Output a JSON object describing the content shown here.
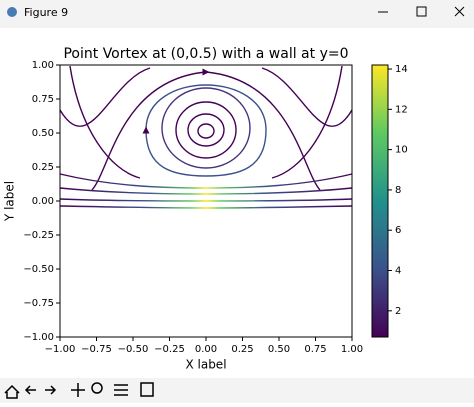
{
  "window": {
    "title": "Figure 9"
  },
  "chart_data": {
    "type": "streamplot",
    "title": "Point Vortex at (0,0.5) with a wall at y=0",
    "x_label": "X label",
    "y_label": "Y label",
    "xlim": [
      -1,
      1
    ],
    "ylim": [
      -1,
      1
    ],
    "xticks": [
      {
        "value": -1,
        "label": "−1.00"
      },
      {
        "value": -0.75,
        "label": "−0.75"
      },
      {
        "value": -0.5,
        "label": "−0.50"
      },
      {
        "value": -0.25,
        "label": "−0.25"
      },
      {
        "value": 0,
        "label": "0.00"
      },
      {
        "value": 0.25,
        "label": "0.25"
      },
      {
        "value": 0.5,
        "label": "0.50"
      },
      {
        "value": 0.75,
        "label": "0.75"
      },
      {
        "value": 1,
        "label": "1.00"
      }
    ],
    "yticks": [
      {
        "value": -1,
        "label": "−1.00"
      },
      {
        "value": -0.75,
        "label": "−0.75"
      },
      {
        "value": -0.5,
        "label": "−0.50"
      },
      {
        "value": -0.25,
        "label": "−0.25"
      },
      {
        "value": 0,
        "label": "0.00"
      },
      {
        "value": 0.25,
        "label": "0.25"
      },
      {
        "value": 0.5,
        "label": "0.50"
      },
      {
        "value": 0.75,
        "label": "0.75"
      },
      {
        "value": 1,
        "label": "1.00"
      }
    ],
    "colorbar": {
      "lim": [
        0.7,
        14.2
      ],
      "ticks": [
        2,
        4,
        6,
        8,
        10,
        12,
        14
      ],
      "colormap": "viridis"
    }
  }
}
